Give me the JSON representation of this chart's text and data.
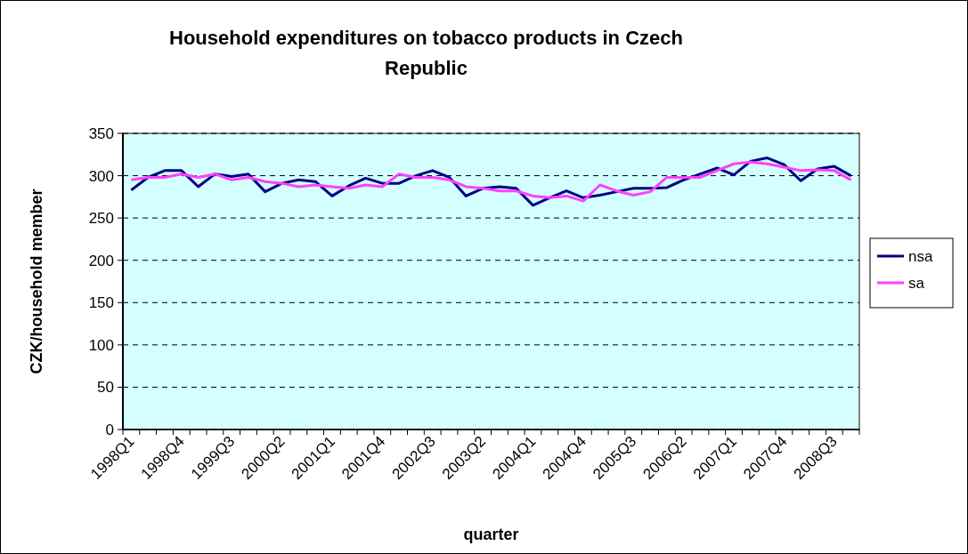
{
  "chart_data": {
    "type": "line",
    "title": "Household expenditures on tobacco products in Czech Republic",
    "xlabel": "quarter",
    "ylabel": "CZK/household member",
    "categories": [
      "1998Q1",
      null,
      null,
      "1998Q4",
      null,
      null,
      "1999Q3",
      null,
      null,
      "2000Q2",
      null,
      null,
      "2001Q1",
      null,
      null,
      "2001Q4",
      null,
      null,
      "2002Q3",
      null,
      null,
      "2003Q2",
      null,
      null,
      "2004Q1",
      null,
      null,
      "2004Q4",
      null,
      null,
      "2005Q3",
      null,
      null,
      "2006Q2",
      null,
      null,
      "2007Q1",
      null,
      null,
      "2007Q4",
      null,
      null,
      "2008Q3",
      null
    ],
    "series": [
      {
        "name": "nsa",
        "color": "#000080",
        "values": [
          283,
          298,
          306,
          306,
          287,
          302,
          299,
          302,
          281,
          291,
          295,
          293,
          276,
          288,
          297,
          291,
          291,
          300,
          306,
          298,
          276,
          285,
          287,
          285,
          265,
          274,
          282,
          274,
          277,
          281,
          285,
          285,
          286,
          295,
          302,
          309,
          301,
          317,
          321,
          313,
          294,
          308,
          311,
          300
        ]
      },
      {
        "name": "sa",
        "color": "#ff40ff",
        "values": [
          295,
          298,
          298,
          302,
          298,
          302,
          295,
          298,
          293,
          291,
          287,
          289,
          287,
          285,
          289,
          287,
          302,
          298,
          298,
          295,
          287,
          285,
          282,
          282,
          276,
          274,
          276,
          270,
          289,
          282,
          277,
          281,
          298,
          298,
          298,
          306,
          314,
          316,
          314,
          310,
          306,
          307,
          306,
          295
        ]
      }
    ],
    "ylim": [
      0,
      350
    ],
    "yticks": [
      0,
      50,
      100,
      150,
      200,
      250,
      300,
      350
    ],
    "grid": "y",
    "legend": "right",
    "line_style": "solid",
    "marker": "none"
  }
}
